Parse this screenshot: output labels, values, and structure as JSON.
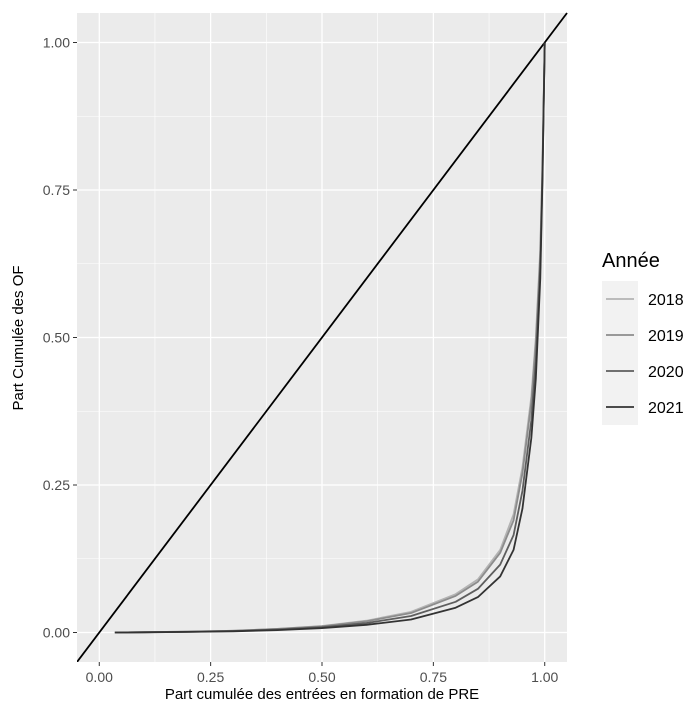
{
  "chart_data": {
    "type": "line",
    "title": "",
    "xlabel": "Part cumulée des entrées en formation de PRE",
    "ylabel": "Part Cumulée des OF",
    "xlim": [
      -0.05,
      1.05
    ],
    "ylim": [
      -0.05,
      1.05
    ],
    "x_ticks": [
      "0.00",
      "0.25",
      "0.50",
      "0.75",
      "1.00"
    ],
    "y_ticks": [
      "0.00",
      "0.25",
      "0.50",
      "0.75",
      "1.00"
    ],
    "grid": true,
    "legend": {
      "title": "Année",
      "position": "right"
    },
    "reference_line": {
      "from": [
        -0.05,
        -0.05
      ],
      "to": [
        1.05,
        1.05
      ],
      "color": "#000000"
    },
    "series": [
      {
        "name": "2018",
        "color": "#b3b3b3",
        "points": [
          [
            0.035,
            0
          ],
          [
            0.1,
            0.0005
          ],
          [
            0.2,
            0.0015
          ],
          [
            0.3,
            0.003
          ],
          [
            0.4,
            0.006
          ],
          [
            0.5,
            0.011
          ],
          [
            0.6,
            0.02
          ],
          [
            0.7,
            0.035
          ],
          [
            0.8,
            0.065
          ],
          [
            0.85,
            0.09
          ],
          [
            0.9,
            0.14
          ],
          [
            0.93,
            0.2
          ],
          [
            0.95,
            0.28
          ],
          [
            0.97,
            0.4
          ],
          [
            0.98,
            0.5
          ],
          [
            0.99,
            0.65
          ],
          [
            0.995,
            0.8
          ],
          [
            1.0,
            1.0
          ]
        ]
      },
      {
        "name": "2019",
        "color": "#8c8c8c",
        "points": [
          [
            0.035,
            0
          ],
          [
            0.1,
            0.0005
          ],
          [
            0.2,
            0.0015
          ],
          [
            0.3,
            0.003
          ],
          [
            0.4,
            0.006
          ],
          [
            0.5,
            0.0105
          ],
          [
            0.6,
            0.019
          ],
          [
            0.7,
            0.033
          ],
          [
            0.8,
            0.062
          ],
          [
            0.85,
            0.086
          ],
          [
            0.9,
            0.135
          ],
          [
            0.93,
            0.19
          ],
          [
            0.95,
            0.27
          ],
          [
            0.97,
            0.39
          ],
          [
            0.98,
            0.49
          ],
          [
            0.99,
            0.64
          ],
          [
            0.995,
            0.79
          ],
          [
            1.0,
            1.0
          ]
        ]
      },
      {
        "name": "2020",
        "color": "#5e5e5e",
        "points": [
          [
            0.035,
            0
          ],
          [
            0.1,
            0.0004
          ],
          [
            0.2,
            0.0012
          ],
          [
            0.3,
            0.0025
          ],
          [
            0.4,
            0.005
          ],
          [
            0.5,
            0.009
          ],
          [
            0.6,
            0.016
          ],
          [
            0.7,
            0.028
          ],
          [
            0.8,
            0.052
          ],
          [
            0.85,
            0.074
          ],
          [
            0.9,
            0.115
          ],
          [
            0.93,
            0.165
          ],
          [
            0.95,
            0.24
          ],
          [
            0.97,
            0.36
          ],
          [
            0.98,
            0.46
          ],
          [
            0.99,
            0.62
          ],
          [
            0.995,
            0.78
          ],
          [
            1.0,
            1.0
          ]
        ]
      },
      {
        "name": "2021",
        "color": "#333333",
        "points": [
          [
            0.035,
            0
          ],
          [
            0.1,
            0.0003
          ],
          [
            0.2,
            0.001
          ],
          [
            0.3,
            0.002
          ],
          [
            0.4,
            0.004
          ],
          [
            0.5,
            0.0075
          ],
          [
            0.6,
            0.013
          ],
          [
            0.7,
            0.022
          ],
          [
            0.8,
            0.042
          ],
          [
            0.85,
            0.06
          ],
          [
            0.9,
            0.095
          ],
          [
            0.93,
            0.14
          ],
          [
            0.95,
            0.21
          ],
          [
            0.97,
            0.33
          ],
          [
            0.98,
            0.43
          ],
          [
            0.99,
            0.6
          ],
          [
            0.995,
            0.77
          ],
          [
            1.0,
            1.0
          ]
        ]
      }
    ]
  }
}
